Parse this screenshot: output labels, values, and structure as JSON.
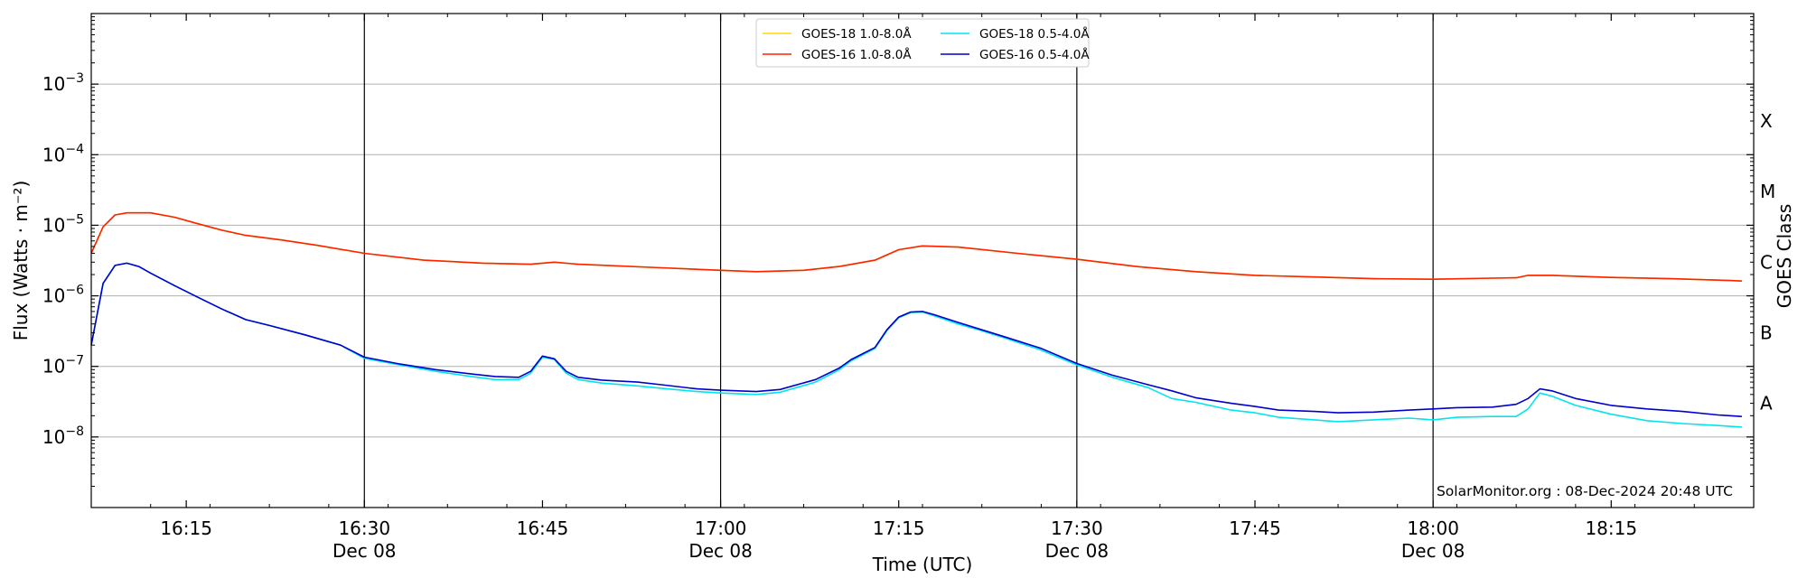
{
  "chart_data": {
    "type": "line",
    "title": "",
    "xlabel": "Time (UTC)",
    "ylabel": "Flux (Watts · m⁻²)",
    "right_ylabel": "GOES Class",
    "y_scale": "log",
    "ylim": [
      1e-09,
      0.01
    ],
    "xlim": [
      "16:07",
      "18:27"
    ],
    "y_ticks": [
      {
        "value": 1e-08,
        "base": "10",
        "exp": "−8"
      },
      {
        "value": 1e-07,
        "base": "10",
        "exp": "−7"
      },
      {
        "value": 1e-06,
        "base": "10",
        "exp": "−6"
      },
      {
        "value": 1e-05,
        "base": "10",
        "exp": "−5"
      },
      {
        "value": 0.0001,
        "base": "10",
        "exp": "−4"
      },
      {
        "value": 0.001,
        "base": "10",
        "exp": "−3"
      }
    ],
    "x_ticks": [
      {
        "time": "16:15",
        "label": "16:15",
        "sub": ""
      },
      {
        "time": "16:30",
        "label": "16:30",
        "sub": "Dec 08"
      },
      {
        "time": "16:45",
        "label": "16:45",
        "sub": ""
      },
      {
        "time": "17:00",
        "label": "17:00",
        "sub": "Dec 08"
      },
      {
        "time": "17:15",
        "label": "17:15",
        "sub": ""
      },
      {
        "time": "17:30",
        "label": "17:30",
        "sub": "Dec 08"
      },
      {
        "time": "17:45",
        "label": "17:45",
        "sub": ""
      },
      {
        "time": "18:00",
        "label": "18:00",
        "sub": "Dec 08"
      },
      {
        "time": "18:15",
        "label": "18:15",
        "sub": ""
      }
    ],
    "vertical_lines": [
      "16:30",
      "17:00",
      "17:30",
      "18:00"
    ],
    "goes_classes": [
      {
        "label": "A",
        "value": 3e-08
      },
      {
        "label": "B",
        "value": 3e-07
      },
      {
        "label": "C",
        "value": 3e-06
      },
      {
        "label": "M",
        "value": 3e-05
      },
      {
        "label": "X",
        "value": 0.0003
      }
    ],
    "grid": true,
    "legend_position": "top-center",
    "annotation": "SolarMonitor.org : 08-Dec-2024 20:48 UTC",
    "series": [
      {
        "name": "GOES-18 1.0-8.0Å",
        "color": "#ffd700",
        "points": [
          [
            "16:07",
            4e-06
          ],
          [
            "16:08",
            9.5e-06
          ],
          [
            "16:09",
            1.4e-05
          ],
          [
            "16:10",
            1.5e-05
          ],
          [
            "16:12",
            1.5e-05
          ],
          [
            "16:14",
            1.3e-05
          ],
          [
            "16:16",
            1.05e-05
          ],
          [
            "16:18",
            8.5e-06
          ],
          [
            "16:20",
            7.2e-06
          ],
          [
            "16:23",
            6.2e-06
          ],
          [
            "16:26",
            5.2e-06
          ],
          [
            "16:30",
            4e-06
          ],
          [
            "16:35",
            3.2e-06
          ],
          [
            "16:40",
            2.9e-06
          ],
          [
            "16:44",
            2.8e-06
          ],
          [
            "16:46",
            3e-06
          ],
          [
            "16:48",
            2.8e-06
          ],
          [
            "16:55",
            2.5e-06
          ],
          [
            "17:00",
            2.3e-06
          ],
          [
            "17:03",
            2.2e-06
          ],
          [
            "17:07",
            2.3e-06
          ],
          [
            "17:10",
            2.6e-06
          ],
          [
            "17:13",
            3.2e-06
          ],
          [
            "17:15",
            4.5e-06
          ],
          [
            "17:17",
            5.1e-06
          ],
          [
            "17:20",
            4.9e-06
          ],
          [
            "17:25",
            4e-06
          ],
          [
            "17:30",
            3.3e-06
          ],
          [
            "17:35",
            2.6e-06
          ],
          [
            "17:40",
            2.2e-06
          ],
          [
            "17:45",
            1.95e-06
          ],
          [
            "17:50",
            1.85e-06
          ],
          [
            "17:55",
            1.75e-06
          ],
          [
            "18:00",
            1.72e-06
          ],
          [
            "18:05",
            1.78e-06
          ],
          [
            "18:07",
            1.8e-06
          ],
          [
            "18:08",
            1.95e-06
          ],
          [
            "18:10",
            1.95e-06
          ],
          [
            "18:15",
            1.82e-06
          ],
          [
            "18:20",
            1.75e-06
          ],
          [
            "18:25",
            1.65e-06
          ],
          [
            "18:26",
            1.62e-06
          ]
        ]
      },
      {
        "name": "GOES-16 1.0-8.0Å",
        "color": "#ff2200",
        "points": [
          [
            "16:07",
            4e-06
          ],
          [
            "16:08",
            9.5e-06
          ],
          [
            "16:09",
            1.4e-05
          ],
          [
            "16:10",
            1.5e-05
          ],
          [
            "16:12",
            1.5e-05
          ],
          [
            "16:14",
            1.3e-05
          ],
          [
            "16:16",
            1.05e-05
          ],
          [
            "16:18",
            8.5e-06
          ],
          [
            "16:20",
            7.2e-06
          ],
          [
            "16:23",
            6.2e-06
          ],
          [
            "16:26",
            5.2e-06
          ],
          [
            "16:30",
            4e-06
          ],
          [
            "16:35",
            3.2e-06
          ],
          [
            "16:40",
            2.9e-06
          ],
          [
            "16:44",
            2.8e-06
          ],
          [
            "16:46",
            3e-06
          ],
          [
            "16:48",
            2.8e-06
          ],
          [
            "16:55",
            2.5e-06
          ],
          [
            "17:00",
            2.3e-06
          ],
          [
            "17:03",
            2.2e-06
          ],
          [
            "17:07",
            2.3e-06
          ],
          [
            "17:10",
            2.6e-06
          ],
          [
            "17:13",
            3.2e-06
          ],
          [
            "17:15",
            4.5e-06
          ],
          [
            "17:17",
            5.1e-06
          ],
          [
            "17:20",
            4.9e-06
          ],
          [
            "17:25",
            4e-06
          ],
          [
            "17:30",
            3.3e-06
          ],
          [
            "17:35",
            2.6e-06
          ],
          [
            "17:40",
            2.2e-06
          ],
          [
            "17:45",
            1.95e-06
          ],
          [
            "17:50",
            1.85e-06
          ],
          [
            "17:55",
            1.75e-06
          ],
          [
            "18:00",
            1.72e-06
          ],
          [
            "18:05",
            1.78e-06
          ],
          [
            "18:07",
            1.8e-06
          ],
          [
            "18:08",
            1.95e-06
          ],
          [
            "18:10",
            1.95e-06
          ],
          [
            "18:15",
            1.82e-06
          ],
          [
            "18:20",
            1.75e-06
          ],
          [
            "18:25",
            1.65e-06
          ],
          [
            "18:26",
            1.62e-06
          ]
        ]
      },
      {
        "name": "GOES-18 0.5-4.0Å",
        "color": "#00e5ee",
        "points": [
          [
            "16:07",
            2e-07
          ],
          [
            "16:08",
            1.5e-06
          ],
          [
            "16:09",
            2.7e-06
          ],
          [
            "16:10",
            2.9e-06
          ],
          [
            "16:11",
            2.6e-06
          ],
          [
            "16:12",
            2.1e-06
          ],
          [
            "16:14",
            1.4e-06
          ],
          [
            "16:16",
            9.5e-07
          ],
          [
            "16:18",
            6.5e-07
          ],
          [
            "16:20",
            4.6e-07
          ],
          [
            "16:22",
            3.8e-07
          ],
          [
            "16:25",
            2.8e-07
          ],
          [
            "16:28",
            2e-07
          ],
          [
            "16:30",
            1.3e-07
          ],
          [
            "16:33",
            1.05e-07
          ],
          [
            "16:36",
            8.5e-08
          ],
          [
            "16:39",
            7.2e-08
          ],
          [
            "16:41",
            6.5e-08
          ],
          [
            "16:43",
            6.5e-08
          ],
          [
            "16:44",
            8e-08
          ],
          [
            "16:45",
            1.35e-07
          ],
          [
            "16:46",
            1.25e-07
          ],
          [
            "16:47",
            8e-08
          ],
          [
            "16:48",
            6.5e-08
          ],
          [
            "16:50",
            5.8e-08
          ],
          [
            "16:53",
            5.3e-08
          ],
          [
            "16:55",
            4.9e-08
          ],
          [
            "16:58",
            4.4e-08
          ],
          [
            "17:00",
            4.2e-08
          ],
          [
            "17:03",
            4e-08
          ],
          [
            "17:05",
            4.3e-08
          ],
          [
            "17:08",
            6e-08
          ],
          [
            "17:10",
            9e-08
          ],
          [
            "17:11",
            1.2e-07
          ],
          [
            "17:13",
            1.8e-07
          ],
          [
            "17:14",
            3.2e-07
          ],
          [
            "17:15",
            4.9e-07
          ],
          [
            "17:16",
            5.8e-07
          ],
          [
            "17:17",
            5.9e-07
          ],
          [
            "17:18",
            5.2e-07
          ],
          [
            "17:20",
            4e-07
          ],
          [
            "17:22",
            3.2e-07
          ],
          [
            "17:24",
            2.5e-07
          ],
          [
            "17:27",
            1.7e-07
          ],
          [
            "17:30",
            1.05e-07
          ],
          [
            "17:33",
            7e-08
          ],
          [
            "17:36",
            5e-08
          ],
          [
            "17:38",
            3.5e-08
          ],
          [
            "17:40",
            3.1e-08
          ],
          [
            "17:43",
            2.4e-08
          ],
          [
            "17:45",
            2.2e-08
          ],
          [
            "17:47",
            1.9e-08
          ],
          [
            "17:50",
            1.75e-08
          ],
          [
            "17:52",
            1.65e-08
          ],
          [
            "17:55",
            1.75e-08
          ],
          [
            "17:58",
            1.85e-08
          ],
          [
            "18:00",
            1.75e-08
          ],
          [
            "18:02",
            1.9e-08
          ],
          [
            "18:05",
            1.95e-08
          ],
          [
            "18:07",
            1.95e-08
          ],
          [
            "18:08",
            2.5e-08
          ],
          [
            "18:09",
            4.2e-08
          ],
          [
            "18:10",
            3.8e-08
          ],
          [
            "18:12",
            2.8e-08
          ],
          [
            "18:15",
            2.1e-08
          ],
          [
            "18:18",
            1.7e-08
          ],
          [
            "18:21",
            1.55e-08
          ],
          [
            "18:24",
            1.45e-08
          ],
          [
            "18:26",
            1.38e-08
          ]
        ]
      },
      {
        "name": "GOES-16 0.5-4.0Å",
        "color": "#0000cc",
        "points": [
          [
            "16:07",
            2e-07
          ],
          [
            "16:08",
            1.5e-06
          ],
          [
            "16:09",
            2.7e-06
          ],
          [
            "16:10",
            2.9e-06
          ],
          [
            "16:11",
            2.6e-06
          ],
          [
            "16:12",
            2.1e-06
          ],
          [
            "16:14",
            1.4e-06
          ],
          [
            "16:16",
            9.5e-07
          ],
          [
            "16:18",
            6.5e-07
          ],
          [
            "16:20",
            4.6e-07
          ],
          [
            "16:22",
            3.8e-07
          ],
          [
            "16:25",
            2.8e-07
          ],
          [
            "16:28",
            2e-07
          ],
          [
            "16:30",
            1.35e-07
          ],
          [
            "16:33",
            1.08e-07
          ],
          [
            "16:36",
            9e-08
          ],
          [
            "16:39",
            7.8e-08
          ],
          [
            "16:41",
            7.2e-08
          ],
          [
            "16:43",
            7e-08
          ],
          [
            "16:44",
            8.5e-08
          ],
          [
            "16:45",
            1.4e-07
          ],
          [
            "16:46",
            1.28e-07
          ],
          [
            "16:47",
            8.5e-08
          ],
          [
            "16:48",
            7e-08
          ],
          [
            "16:50",
            6.4e-08
          ],
          [
            "16:53",
            6e-08
          ],
          [
            "16:55",
            5.5e-08
          ],
          [
            "16:58",
            4.8e-08
          ],
          [
            "17:00",
            4.6e-08
          ],
          [
            "17:03",
            4.4e-08
          ],
          [
            "17:05",
            4.7e-08
          ],
          [
            "17:08",
            6.5e-08
          ],
          [
            "17:10",
            9.5e-08
          ],
          [
            "17:11",
            1.25e-07
          ],
          [
            "17:13",
            1.85e-07
          ],
          [
            "17:14",
            3.3e-07
          ],
          [
            "17:15",
            5e-07
          ],
          [
            "17:16",
            5.9e-07
          ],
          [
            "17:17",
            6e-07
          ],
          [
            "17:18",
            5.4e-07
          ],
          [
            "17:20",
            4.2e-07
          ],
          [
            "17:22",
            3.3e-07
          ],
          [
            "17:24",
            2.6e-07
          ],
          [
            "17:27",
            1.8e-07
          ],
          [
            "17:30",
            1.1e-07
          ],
          [
            "17:33",
            7.5e-08
          ],
          [
            "17:36",
            5.5e-08
          ],
          [
            "17:38",
            4.5e-08
          ],
          [
            "17:40",
            3.6e-08
          ],
          [
            "17:43",
            3e-08
          ],
          [
            "17:45",
            2.7e-08
          ],
          [
            "17:47",
            2.4e-08
          ],
          [
            "17:50",
            2.3e-08
          ],
          [
            "17:52",
            2.2e-08
          ],
          [
            "17:55",
            2.25e-08
          ],
          [
            "17:58",
            2.4e-08
          ],
          [
            "18:00",
            2.5e-08
          ],
          [
            "18:02",
            2.6e-08
          ],
          [
            "18:05",
            2.65e-08
          ],
          [
            "18:07",
            2.9e-08
          ],
          [
            "18:08",
            3.5e-08
          ],
          [
            "18:09",
            4.8e-08
          ],
          [
            "18:10",
            4.5e-08
          ],
          [
            "18:12",
            3.5e-08
          ],
          [
            "18:15",
            2.8e-08
          ],
          [
            "18:18",
            2.5e-08
          ],
          [
            "18:21",
            2.3e-08
          ],
          [
            "18:24",
            2.05e-08
          ],
          [
            "18:26",
            1.95e-08
          ]
        ]
      }
    ]
  }
}
